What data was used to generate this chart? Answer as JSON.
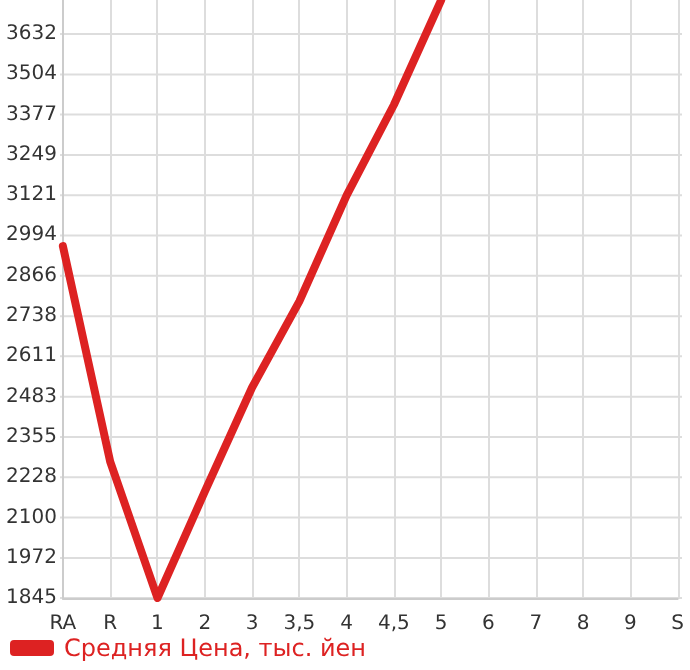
{
  "chart_data": {
    "type": "line",
    "categories": [
      "RA",
      "R",
      "1",
      "2",
      "3",
      "3,5",
      "4",
      "4,5",
      "5",
      "6",
      "7",
      "8",
      "9",
      "S"
    ],
    "series": [
      {
        "name": "Средняя Цена, тыс. йен",
        "color": "#dd2222",
        "values": [
          2960,
          2277,
          1845,
          2182,
          2512,
          2785,
          3121,
          3408,
          3740,
          null,
          null,
          null,
          null,
          null
        ]
      }
    ],
    "ylim": [
      1845,
      3740
    ],
    "yticks": [
      1845,
      1972,
      2100,
      2228,
      2355,
      2483,
      2611,
      2738,
      2866,
      2994,
      3121,
      3249,
      3377,
      3504,
      3632
    ],
    "grid": true,
    "legend": "bottom",
    "marker": "none",
    "line_style": "solid"
  }
}
